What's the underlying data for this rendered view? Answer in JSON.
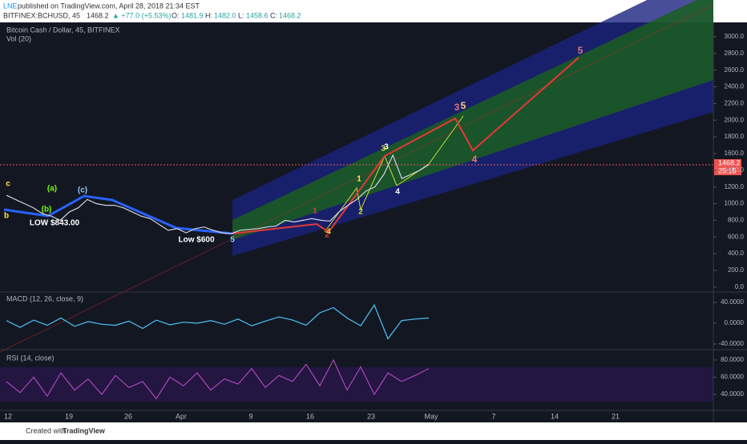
{
  "header": {
    "author": "LNE",
    "published": "published on TradingView.com, April 28, 2018 21:34 EST",
    "symbol": "BITFINEX:BCHUSD, 45",
    "last": "1468.2",
    "change": "▲ +77.0 (+5.53%)",
    "o_label": "O:",
    "o": "1481.9",
    "h_label": "H:",
    "h": "1482.0",
    "l_label": "L:",
    "l": "1458.6",
    "c_label": "C:",
    "c": "1468.2"
  },
  "legend": {
    "main": "Bitcoin Cash / Dollar, 45, BITFINEX",
    "volume": "Vol (20)",
    "macd": "MACD (12, 26, close, 9)",
    "rsi": "RSI (14, close)"
  },
  "price_tag": {
    "price": "1468.2",
    "countdown": "25:15"
  },
  "price": {
    "values": [
      1100,
      1050,
      1000,
      950,
      880,
      850,
      800,
      900,
      950,
      1050,
      1000,
      980,
      980,
      950,
      900,
      850,
      820,
      750,
      680,
      700,
      650,
      700,
      720,
      680,
      650,
      640,
      680,
      690,
      700,
      720,
      730,
      800,
      780,
      800,
      820,
      800,
      790,
      900,
      980,
      1050,
      1150,
      1200,
      1350,
      1580,
      1300,
      1350,
      1400,
      1468.2
    ],
    "yticks": [
      {
        "value": 0,
        "label": "0.0"
      },
      {
        "value": 200,
        "label": "200.0"
      },
      {
        "value": 400,
        "label": "400.0"
      },
      {
        "value": 600,
        "label": "600.0"
      },
      {
        "value": 800,
        "label": "800.0"
      },
      {
        "value": 1000,
        "label": "1000.0"
      },
      {
        "value": 1200,
        "label": "1200.0"
      },
      {
        "value": 1400,
        "label": "1400.0"
      },
      {
        "value": 1600,
        "label": "1600.0"
      },
      {
        "value": 1800,
        "label": "1800.0"
      },
      {
        "value": 2000,
        "label": "2000.0"
      },
      {
        "value": 2200,
        "label": "2200.0"
      },
      {
        "value": 2400,
        "label": "2400.0"
      },
      {
        "value": 2600,
        "label": "2600.0"
      },
      {
        "value": 2800,
        "label": "2800.0"
      },
      {
        "value": 3000,
        "label": "3000.0"
      }
    ]
  },
  "macd": {
    "values": [
      5,
      -8,
      6,
      -4,
      10,
      -6,
      3,
      -2,
      -4,
      4,
      -10,
      6,
      -3,
      2,
      0,
      5,
      -2,
      8,
      -5,
      4,
      12,
      6,
      -4,
      20,
      30,
      10,
      -5,
      35,
      -30,
      5,
      8,
      10
    ],
    "yticks": [
      {
        "value": 40,
        "label": "40.0000"
      },
      {
        "value": 0,
        "label": "0.0000"
      },
      {
        "value": -40,
        "label": "-40.0000"
      }
    ]
  },
  "rsi": {
    "values": [
      55,
      42,
      60,
      38,
      65,
      45,
      58,
      40,
      62,
      48,
      55,
      35,
      60,
      50,
      65,
      45,
      58,
      52,
      70,
      48,
      62,
      55,
      75,
      50,
      80,
      45,
      72,
      40,
      65,
      55,
      62,
      70
    ],
    "yticks": [
      {
        "value": 80,
        "label": "80.0000"
      },
      {
        "value": 60,
        "label": "60.0000"
      },
      {
        "value": 40,
        "label": "40.0000"
      }
    ]
  },
  "dates": [
    "12",
    "19",
    "26",
    "Apr",
    "9",
    "16",
    "23",
    "May",
    "7",
    "14",
    "21"
  ],
  "annotations": [
    "c",
    "b",
    "(a)",
    "(b)",
    "(c)",
    "LOW $843.00",
    "Low $600",
    "1",
    "2",
    "3",
    "4",
    "5",
    "1",
    "2",
    "3",
    "4",
    "3",
    "5",
    "4",
    "5"
  ],
  "footer": {
    "created": "Created with",
    "brand": "TradingView"
  }
}
